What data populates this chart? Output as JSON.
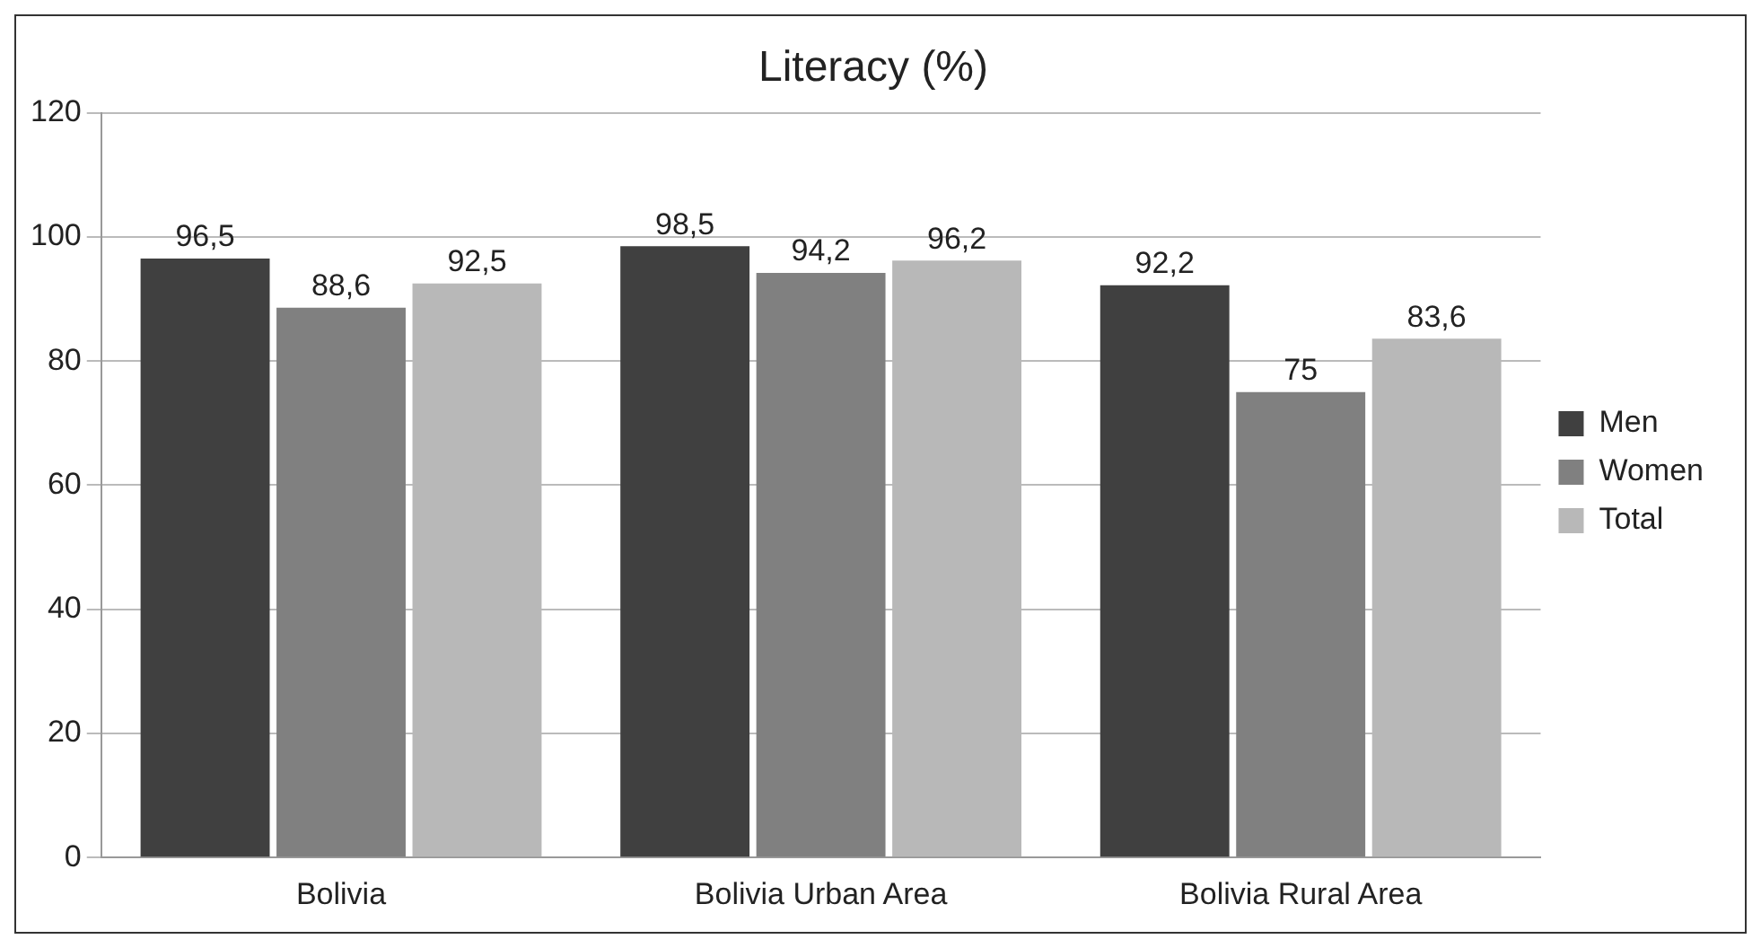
{
  "chart_data": {
    "type": "bar",
    "title": "Literacy (%)",
    "categories": [
      "Bolivia",
      "Bolivia Urban Area",
      "Bolivia Rural Area"
    ],
    "series": [
      {
        "name": "Men",
        "color": "#404040",
        "values": [
          96.5,
          98.5,
          92.2
        ],
        "value_labels": [
          "96,5",
          "98,5",
          "92,2"
        ]
      },
      {
        "name": "Women",
        "color": "#808080",
        "values": [
          88.6,
          94.2,
          75
        ],
        "value_labels": [
          "88,6",
          "94,2",
          "75"
        ]
      },
      {
        "name": "Total",
        "color": "#b8b8b8",
        "values": [
          92.5,
          96.2,
          83.6
        ],
        "value_labels": [
          "92,5",
          "96,2",
          "83,6"
        ]
      }
    ],
    "ylim": [
      0,
      120
    ],
    "yticks": [
      0,
      20,
      40,
      60,
      80,
      100,
      120
    ],
    "grid": "y",
    "legend": "right"
  }
}
